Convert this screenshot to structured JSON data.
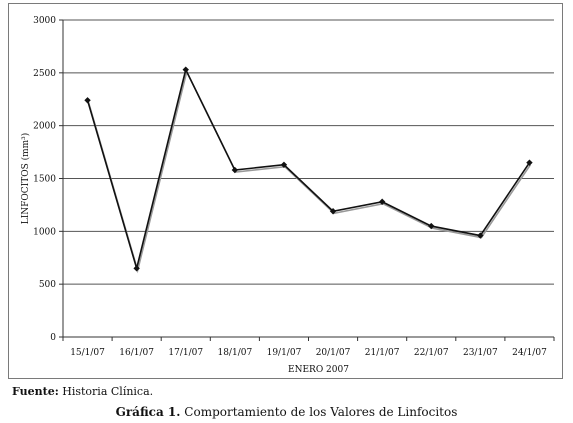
{
  "chart_data": {
    "type": "line",
    "categories": [
      "15/1/07",
      "16/1/07",
      "17/1/07",
      "18/1/07",
      "19/1/07",
      "20/1/07",
      "21/1/07",
      "22/1/07",
      "23/1/07",
      "24/1/07"
    ],
    "values": [
      2240,
      650,
      2530,
      1580,
      1630,
      1190,
      1280,
      1050,
      960,
      1650
    ],
    "xlabel": "ENERO 2007",
    "ylabel": "LINFOCITOS (mm³)",
    "ylim": [
      0,
      3000
    ],
    "yticks": [
      "0",
      "500",
      "1000",
      "1500",
      "2000",
      "2500",
      "3000"
    ],
    "grid": true,
    "legend": "none",
    "line_color": "#111111",
    "grid_color": "#555555"
  },
  "source": {
    "label": "Fuente:",
    "text": "Historia Clínica."
  },
  "caption": {
    "label": "Gráfica 1.",
    "text": "Comportamiento de los Valores de Linfocitos"
  }
}
